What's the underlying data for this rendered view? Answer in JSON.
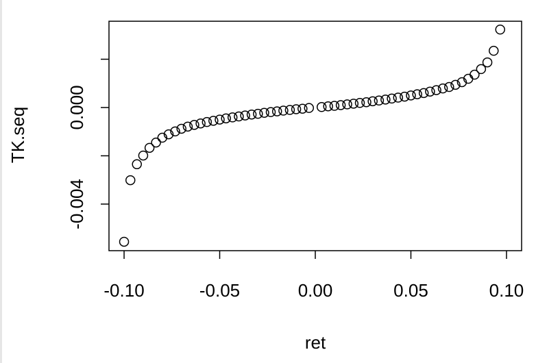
{
  "chart_data": {
    "type": "scatter",
    "x_label": "ret",
    "y_label": "TK.seq",
    "color": "#000000",
    "x": [
      -0.1,
      -0.0967,
      -0.0933,
      -0.09,
      -0.0867,
      -0.0833,
      -0.08,
      -0.0767,
      -0.0733,
      -0.07,
      -0.0667,
      -0.0633,
      -0.06,
      -0.0567,
      -0.0533,
      -0.05,
      -0.0467,
      -0.0433,
      -0.04,
      -0.0367,
      -0.0333,
      -0.03,
      -0.0267,
      -0.0233,
      -0.02,
      -0.0167,
      -0.0133,
      -0.01,
      -0.0067,
      -0.0033,
      0.0033,
      0.0067,
      0.01,
      0.0133,
      0.0167,
      0.02,
      0.0233,
      0.0267,
      0.03,
      0.0333,
      0.0367,
      0.04,
      0.0433,
      0.0467,
      0.05,
      0.0533,
      0.0567,
      0.06,
      0.0633,
      0.0667,
      0.07,
      0.0733,
      0.0767,
      0.08,
      0.0833,
      0.0867,
      0.09,
      0.0933,
      0.0967
    ],
    "values": [
      -0.00556,
      -0.00301,
      -0.00235,
      -0.00199,
      -0.00167,
      -0.00145,
      -0.00125,
      -0.00111,
      -0.00099,
      -0.00088,
      -0.00079,
      -0.00072,
      -0.00066,
      -0.0006,
      -0.00055,
      -0.0005,
      -0.00045,
      -0.00041,
      -0.00037,
      -0.00033,
      -0.00029,
      -0.00026,
      -0.00022,
      -0.00019,
      -0.00016,
      -0.00013,
      -0.0001,
      -7e-05,
      -5e-05,
      -2e-05,
      2e-05,
      5e-05,
      7e-05,
      0.0001,
      0.00013,
      0.00016,
      0.00019,
      0.00022,
      0.00026,
      0.00029,
      0.00033,
      0.00037,
      0.00041,
      0.00045,
      0.0005,
      0.00055,
      0.0006,
      0.00066,
      0.00072,
      0.00079,
      0.00085,
      0.00094,
      0.00105,
      0.00119,
      0.00136,
      0.00159,
      0.00187,
      0.00235,
      0.00323
    ],
    "xlim": [
      -0.1079,
      0.1079
    ],
    "ylim": [
      -0.00593,
      0.003574
    ],
    "xticks": [
      {
        "value": -0.1,
        "label": "-0.10"
      },
      {
        "value": -0.05,
        "label": "-0.05"
      },
      {
        "value": 0,
        "label": "0.00"
      },
      {
        "value": 0.05,
        "label": "0.05"
      },
      {
        "value": 0.1,
        "label": "0.10"
      }
    ],
    "yticks": [
      {
        "value": -0.004,
        "label": "-0.004"
      },
      {
        "value": -0.002,
        "label": null
      },
      {
        "value": 0,
        "label": "0.000"
      },
      {
        "value": 0.002,
        "label": null
      }
    ],
    "grid": false
  }
}
